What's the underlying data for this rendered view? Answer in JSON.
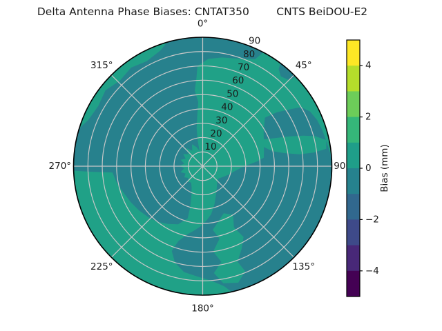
{
  "title": {
    "text": "Delta Antenna Phase Biases: CNTAT350        CNTS BeiDOU-E2"
  },
  "chart_data": {
    "type": "polar_contour",
    "title": "Delta Antenna Phase Biases: CNTAT350        CNTS BeiDOU-E2",
    "antenna": "CNTAT350",
    "station_system": "CNTS BeiDOU-E2",
    "rmax": 90,
    "radial_ticks": [
      10,
      20,
      30,
      40,
      50,
      60,
      70,
      80,
      90
    ],
    "radial_tick_labels": [
      "10",
      "20",
      "30",
      "40",
      "50",
      "60",
      "70",
      "80",
      "90"
    ],
    "radial_tick_angle_deg": 22.5,
    "angular_ticks": [
      {
        "angle": 0,
        "label": "0°"
      },
      {
        "angle": 45,
        "label": "45°"
      },
      {
        "angle": 90,
        "label": "90"
      },
      {
        "angle": 135,
        "label": "135°"
      },
      {
        "angle": 180,
        "label": "180°"
      },
      {
        "angle": 225,
        "label": "225°"
      },
      {
        "angle": 270,
        "label": "270°"
      },
      {
        "angle": 315,
        "label": "315°"
      }
    ],
    "colorbar": {
      "label": "Bias (mm)",
      "vmin": -5,
      "vmax": 5,
      "ticks": [
        {
          "value": 4,
          "label": "4"
        },
        {
          "value": 2,
          "label": "2"
        },
        {
          "value": 0,
          "label": "0"
        },
        {
          "value": -2,
          "label": "−2"
        },
        {
          "value": -4,
          "label": "−4"
        }
      ],
      "segment_colors_top_to_bottom": [
        "#FDE725",
        "#B5DE2B",
        "#6DCD59",
        "#35B779",
        "#1F9E89",
        "#26828E",
        "#31688E",
        "#3E4A89",
        "#482878",
        "#440154"
      ]
    },
    "field": {
      "base_color": "#20A187",
      "base_bias_bin_mm": "0 to 1",
      "negative_color": "#27818D",
      "negative_bias_bin_mm": "-1 to 0",
      "grid_color": "#C8C8C8",
      "outline_color": "#000000",
      "negative_regions_polar_points": [
        [
          [
            268,
            90
          ],
          [
            278,
            90
          ],
          [
            287,
            90
          ],
          [
            292,
            86
          ],
          [
            300,
            84
          ],
          [
            308,
            86
          ],
          [
            316,
            83
          ],
          [
            324,
            85
          ],
          [
            332,
            83
          ],
          [
            340,
            86
          ],
          [
            344,
            90
          ],
          [
            352,
            90
          ],
          [
            360,
            90
          ],
          [
            368,
            90
          ],
          [
            376,
            90
          ],
          [
            382,
            90
          ],
          [
            388,
            90
          ],
          [
            386,
            83
          ],
          [
            378,
            79
          ],
          [
            370,
            77
          ],
          [
            363,
            75
          ],
          [
            357,
            70
          ],
          [
            356,
            62
          ],
          [
            354,
            53
          ],
          [
            356,
            45
          ],
          [
            354,
            36
          ],
          [
            351,
            27
          ],
          [
            349,
            18
          ],
          [
            348,
            11
          ],
          [
            342,
            14
          ],
          [
            334,
            17
          ],
          [
            326,
            13
          ],
          [
            318,
            17
          ],
          [
            310,
            13
          ],
          [
            302,
            16
          ],
          [
            294,
            13
          ],
          [
            286,
            16
          ],
          [
            278,
            13
          ],
          [
            271,
            16
          ],
          [
            263,
            13
          ],
          [
            255,
            16
          ],
          [
            247,
            13
          ],
          [
            239,
            15
          ],
          [
            231,
            13
          ],
          [
            223,
            15
          ],
          [
            215,
            14
          ],
          [
            207,
            17
          ],
          [
            201,
            22
          ],
          [
            197,
            30
          ],
          [
            196,
            38
          ],
          [
            203,
            44
          ],
          [
            211,
            47
          ],
          [
            219,
            50
          ],
          [
            227,
            52
          ],
          [
            235,
            54
          ],
          [
            243,
            56
          ],
          [
            251,
            58
          ],
          [
            259,
            61
          ],
          [
            266,
            63
          ],
          [
            267,
            76
          ]
        ],
        [
          [
            52,
            55
          ],
          [
            54,
            64
          ],
          [
            57,
            73
          ],
          [
            59,
            80
          ],
          [
            63,
            84
          ],
          [
            68,
            86
          ],
          [
            73,
            87
          ],
          [
            79,
            88
          ],
          [
            86,
            90
          ],
          [
            95,
            90
          ],
          [
            104,
            90
          ],
          [
            113,
            90
          ],
          [
            122,
            90
          ],
          [
            131,
            90
          ],
          [
            140,
            90
          ],
          [
            149,
            90
          ],
          [
            158,
            90
          ],
          [
            167,
            90
          ],
          [
            170,
            85
          ],
          [
            176,
            80
          ],
          [
            183,
            77
          ],
          [
            190,
            75
          ],
          [
            196,
            70
          ],
          [
            200,
            63
          ],
          [
            198,
            55
          ],
          [
            193,
            49
          ],
          [
            187,
            45
          ],
          [
            182,
            42
          ],
          [
            176,
            38
          ],
          [
            170,
            34
          ],
          [
            163,
            28
          ],
          [
            155,
            22
          ],
          [
            147,
            18
          ],
          [
            138,
            15
          ],
          [
            128,
            14
          ],
          [
            118,
            16
          ],
          [
            108,
            19
          ],
          [
            98,
            23
          ],
          [
            92,
            27
          ],
          [
            88,
            32
          ],
          [
            85,
            38
          ],
          [
            82,
            43
          ],
          [
            76,
            44
          ],
          [
            68,
            46
          ],
          [
            60,
            49
          ]
        ],
        [
          [
            37,
            90
          ],
          [
            41,
            90
          ],
          [
            46,
            90
          ],
          [
            45,
            85
          ],
          [
            41,
            83
          ],
          [
            38,
            86
          ]
        ]
      ],
      "positive_patches_polar_points": [
        [
          [
            66,
            46
          ],
          [
            69,
            55
          ],
          [
            71,
            64
          ],
          [
            73,
            73
          ],
          [
            75,
            81
          ],
          [
            78,
            88
          ],
          [
            82,
            87
          ],
          [
            83,
            78
          ],
          [
            83,
            68
          ],
          [
            81,
            58
          ],
          [
            78,
            50
          ],
          [
            73,
            45
          ],
          [
            69,
            44
          ]
        ],
        [
          [
            148,
            40
          ],
          [
            153,
            48
          ],
          [
            150,
            57
          ],
          [
            155,
            64
          ],
          [
            160,
            71
          ],
          [
            158,
            79
          ],
          [
            163,
            85
          ],
          [
            170,
            83
          ],
          [
            174,
            75
          ],
          [
            169,
            68
          ],
          [
            173,
            60
          ],
          [
            167,
            52
          ],
          [
            171,
            45
          ],
          [
            164,
            40
          ],
          [
            156,
            36
          ]
        ],
        [
          [
            168,
            5
          ],
          [
            172,
            12
          ],
          [
            178,
            17
          ],
          [
            186,
            19
          ],
          [
            196,
            18
          ],
          [
            205,
            15
          ],
          [
            210,
            10
          ],
          [
            205,
            5
          ],
          [
            196,
            2
          ],
          [
            185,
            2
          ],
          [
            175,
            2
          ]
        ]
      ]
    }
  }
}
